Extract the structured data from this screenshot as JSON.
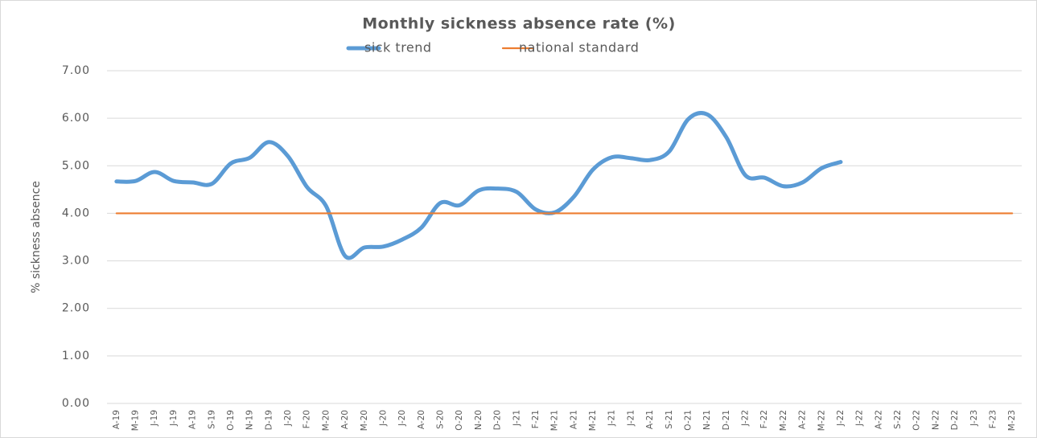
{
  "chart_data": {
    "type": "line",
    "title": "Monthly sickness absence rate (%)",
    "y_label": "% sickness absence",
    "categories": [
      "A-19",
      "M-19",
      "J-19",
      "J-19",
      "A-19",
      "S-19",
      "O-19",
      "N-19",
      "D-19",
      "J-20",
      "F-20",
      "M-20",
      "A-20",
      "M-20",
      "J-20",
      "J-20",
      "A-20",
      "S-20",
      "O-20",
      "N-20",
      "D-20",
      "J-21",
      "F-21",
      "M-21",
      "A-21",
      "M-21",
      "J-21",
      "J-21",
      "A-21",
      "S-21",
      "O-21",
      "N-21",
      "D-21",
      "J-22",
      "F-22",
      "M-22",
      "A-22",
      "M-22",
      "J-22",
      "J-22",
      "A-22",
      "S-22",
      "O-22",
      "N-22",
      "D-22",
      "J-23",
      "F-23",
      "M-23"
    ],
    "series": [
      {
        "name": "sick trend",
        "color": "#5b9bd5",
        "values": [
          4.67,
          4.68,
          4.87,
          4.68,
          4.65,
          4.62,
          5.05,
          5.17,
          5.5,
          5.2,
          4.55,
          4.15,
          3.1,
          3.28,
          3.3,
          3.45,
          3.7,
          4.22,
          4.17,
          4.48,
          4.52,
          4.45,
          4.08,
          4.02,
          4.35,
          4.92,
          5.18,
          5.16,
          5.12,
          5.3,
          5.98,
          6.08,
          5.6,
          4.8,
          4.75,
          4.57,
          4.65,
          4.95,
          5.08,
          null,
          null,
          null,
          null,
          null,
          null,
          null,
          null,
          null
        ]
      },
      {
        "name": "national standard",
        "color": "#ed7d31",
        "values": [
          4,
          4,
          4,
          4,
          4,
          4,
          4,
          4,
          4,
          4,
          4,
          4,
          4,
          4,
          4,
          4,
          4,
          4,
          4,
          4,
          4,
          4,
          4,
          4,
          4,
          4,
          4,
          4,
          4,
          4,
          4,
          4,
          4,
          4,
          4,
          4,
          4,
          4,
          4,
          4,
          4,
          4,
          4,
          4,
          4,
          4,
          4,
          4
        ]
      }
    ],
    "ylim": [
      0,
      7
    ],
    "yticks": [
      {
        "value": 0,
        "label": "0.00"
      },
      {
        "value": 1,
        "label": "1.00"
      },
      {
        "value": 2,
        "label": "2.00"
      },
      {
        "value": 3,
        "label": "3.00"
      },
      {
        "value": 4,
        "label": "4.00"
      },
      {
        "value": 5,
        "label": "5.00"
      },
      {
        "value": 6,
        "label": "6.00"
      },
      {
        "value": 7,
        "label": "7.00"
      }
    ],
    "grid": true,
    "legend": "top"
  }
}
